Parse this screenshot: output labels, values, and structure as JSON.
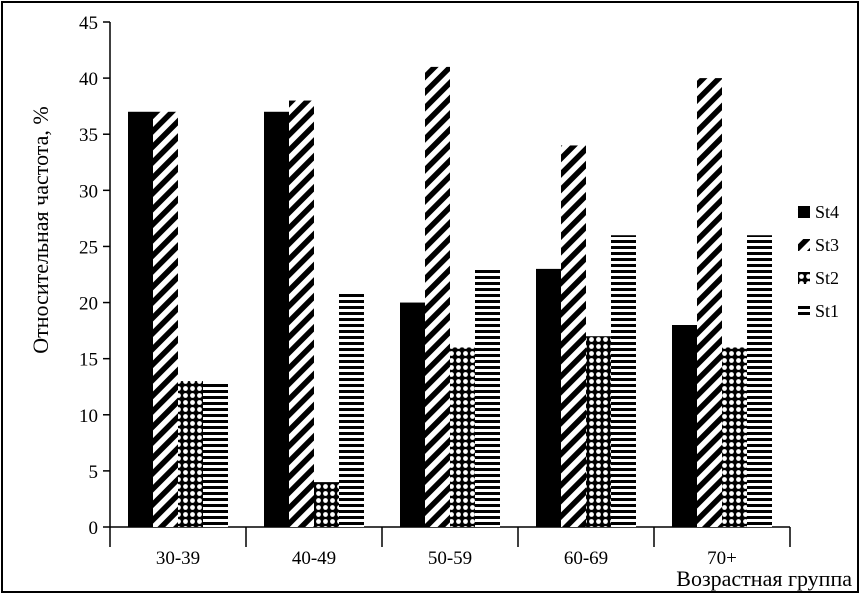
{
  "chart_data": {
    "type": "bar",
    "categories": [
      "30-39",
      "40-49",
      "50-59",
      "60-69",
      "70+"
    ],
    "series": [
      {
        "name": "St4",
        "pattern": "solid",
        "values": [
          37,
          37,
          20,
          23,
          18
        ]
      },
      {
        "name": "St3",
        "pattern": "diagonal",
        "values": [
          37,
          38,
          41,
          34,
          40
        ]
      },
      {
        "name": "St2",
        "pattern": "dots",
        "values": [
          13,
          4,
          16,
          17,
          16
        ]
      },
      {
        "name": "St1",
        "pattern": "horizontal",
        "values": [
          13,
          21,
          23,
          26,
          26
        ]
      }
    ],
    "xlabel": "Возрастная группа",
    "ylabel": "Относительная частота, %",
    "ylim": [
      0,
      45
    ],
    "yticks": [
      0,
      5,
      10,
      15,
      20,
      25,
      30,
      35,
      40,
      45
    ],
    "grid": false,
    "legend": "right",
    "colors": {
      "ink": "#000000",
      "background": "#ffffff"
    }
  }
}
